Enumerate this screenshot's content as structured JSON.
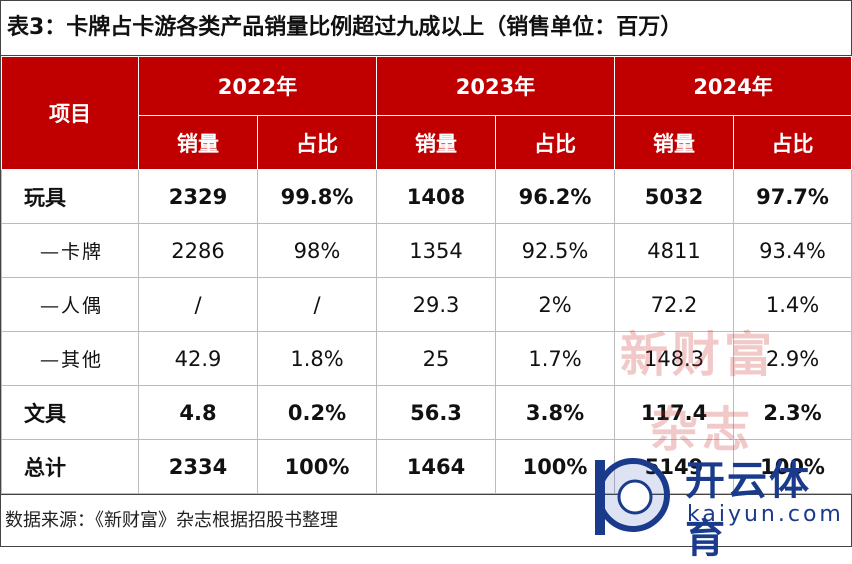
{
  "title": "表3：卡牌占卡游各类产品销量比例超过九成以上（销售单位：百万）",
  "table": {
    "corner": "项目",
    "years": [
      "2022年",
      "2023年",
      "2024年"
    ],
    "subheaders": [
      "销量",
      "占比",
      "销量",
      "占比",
      "销量",
      "占比"
    ],
    "rows": [
      {
        "label": "玩具",
        "cells": [
          "2329",
          "99.8%",
          "1408",
          "96.2%",
          "5032",
          "97.7%"
        ]
      },
      {
        "label": "—卡牌",
        "cells": [
          "2286",
          "98%",
          "1354",
          "92.5%",
          "4811",
          "93.4%"
        ]
      },
      {
        "label": "—人偶",
        "cells": [
          "/",
          "/",
          "29.3",
          "2%",
          "72.2",
          "1.4%"
        ]
      },
      {
        "label": "—其他",
        "cells": [
          "42.9",
          "1.8%",
          "25",
          "1.7%",
          "148.3",
          "2.9%"
        ]
      },
      {
        "label": "文具",
        "cells": [
          "4.8",
          "0.2%",
          "56.3",
          "3.8%",
          "117.4",
          "2.3%"
        ]
      },
      {
        "label": "总计",
        "cells": [
          "2334",
          "100%",
          "1464",
          "100%",
          "5149",
          "100%"
        ]
      }
    ]
  },
  "footer": "数据来源：《新财富》杂志根据招股书整理",
  "watermark": [
    "新财富",
    "杂志"
  ],
  "logo": {
    "name": "开云体育",
    "url": "kaiyun.com"
  }
}
